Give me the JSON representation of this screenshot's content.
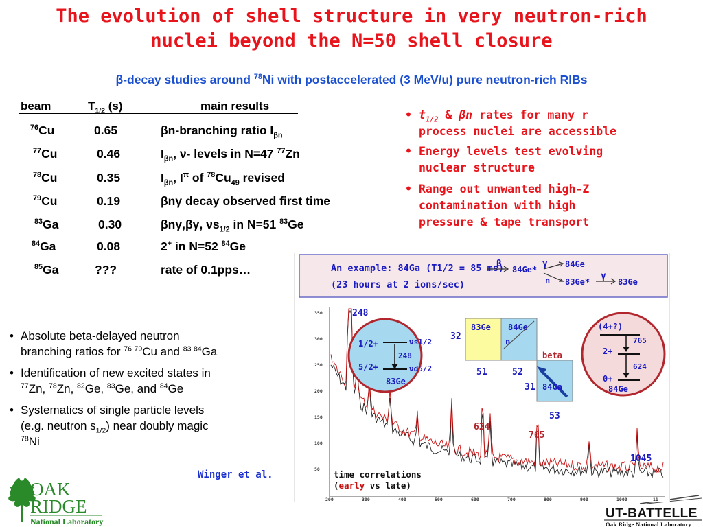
{
  "title": {
    "line1": "The evolution of shell structure in very neutron-rich",
    "line2": "nuclei beyond the N=50 shell closure"
  },
  "subtitle": {
    "beta": "β",
    "text_a": "-decay  studies around ",
    "mass": "78",
    "element": "Ni",
    "text_b": " with postaccelerated (3 MeV/u) pure neutron-rich  RIBs"
  },
  "table": {
    "headers": {
      "beam": "beam",
      "thalf_t": "T",
      "thalf_sub": "1/2",
      "thalf_unit": "(s)",
      "results": "main  results"
    },
    "rows": [
      {
        "mass": "76",
        "el": "Cu",
        "t": "0.65",
        "result": "βn-branching ratio Iβn"
      },
      {
        "mass": "77",
        "el": "Cu",
        "t": "0.46",
        "result": "Iβn, ν- levels in N=47 77Zn"
      },
      {
        "mass": "78",
        "el": "Cu",
        "t": "0.35",
        "result": "Iβn,  Iπ  of  78Cu49 revised"
      },
      {
        "mass": "79",
        "el": "Cu",
        "t": "0.19",
        "result": "βnγ decay observed first time"
      },
      {
        "mass": "83",
        "el": "Ga",
        "t": "0.30",
        "result": "βnγ,βγ, νs1/2 in N=51 83Ge"
      },
      {
        "mass": "84",
        "el": "Ga",
        "t": "0.08",
        "result": "2+  in  N=52 84Ge"
      },
      {
        "mass": "85",
        "el": "Ga",
        "t": "???",
        "result": "rate of 0.1pps…"
      }
    ]
  },
  "right_bullets": {
    "b1_t": "t",
    "b1_sub": "1/2",
    "b1_amp": " & ",
    "b1_bn": "βn",
    "b1_l1_rest": " rates for many r",
    "b1_l2": "process nuclei are accessible",
    "b2_l1": "Energy levels test evolving",
    "b2_l2": "nuclear structure",
    "b3_l1": "Range out unwanted high-Z",
    "b3_l2": "contamination with high",
    "b3_l3": "pressure & tape transport"
  },
  "left_bullets": {
    "b1_l1": "Absolute beta-delayed neutron",
    "b1_l2a": "branching ratios for ",
    "b1_sup1": "76-79",
    "b1_l2b": "Cu and ",
    "b1_sup2": "83-84",
    "b1_l2c": "Ga",
    "b2_l1": "Identification of new excited states in",
    "b2_l2": "77Zn, 78Zn, 82Ge, 83Ge, and 84Ge",
    "b3_l1": "Systematics of single particle levels",
    "b3_l2": "(e.g. neutron s1/2) near doubly magic",
    "b3_l3": "78Ni"
  },
  "credit": "Winger et al.",
  "logos": {
    "ornl_oak": "OAK",
    "ornl_ridge": "RIDGE",
    "ornl_lab": "National Laboratory",
    "utb": "UT-BATTELLE",
    "utb_sub": "Oak Ridge National Laboratory"
  },
  "figure": {
    "banner_l1": "An example: 84Ga (T1/2 = 85 ms)",
    "banner_l2": "(23 hours at 2 ions/sec)",
    "scheme": {
      "beta": "β",
      "gamma1": "γ",
      "gamma2": "γ",
      "n": "n",
      "ge84": "84Ge",
      "ge84x": "84Ge*",
      "ge83x": "83Ge*",
      "ge83": "83Ge"
    },
    "peaks": {
      "p248": "248",
      "p624": "624",
      "p765": "765",
      "p1045": "1045"
    },
    "levels_left": {
      "s12": "νs1/2",
      "d52": "νd5/2",
      "l12": "1/2+",
      "l52": "5/2+",
      "e248": "248",
      "ge83": "83Ge"
    },
    "nucl_map": {
      "ge83": "83Ge",
      "ge84": "84Ge",
      "n": "n",
      "beta": "beta",
      "ga84": "84Ga",
      "n32": "32",
      "n51": "51",
      "n52": "52",
      "n31": "31",
      "n53": "53"
    },
    "levels_right": {
      "l4": "(4+?)",
      "e765": "765",
      "l2": "2+",
      "e624": "624",
      "l0": "0+",
      "ge84": "84Ge"
    },
    "legend_l1": "time correlations",
    "legend_early": "early",
    "legend_l2": " vs late)",
    "legend_paren": "(",
    "yticks": [
      "350",
      "300",
      "250",
      "200",
      "150",
      "100",
      "50"
    ],
    "xticks": [
      "200",
      "300",
      "400",
      "500",
      "600",
      "700",
      "800",
      "900",
      "1000",
      "11"
    ]
  },
  "colors": {
    "title": "#e8141c",
    "subtitle": "#1a4fd0",
    "yellow": "#fdfba0",
    "blue": "#a6d8f0",
    "circle_fill": "#f4dada",
    "circle_stroke": "#b2272e",
    "banner_bg": "#f6e8ea",
    "banner_border": "#6a6ac8"
  }
}
